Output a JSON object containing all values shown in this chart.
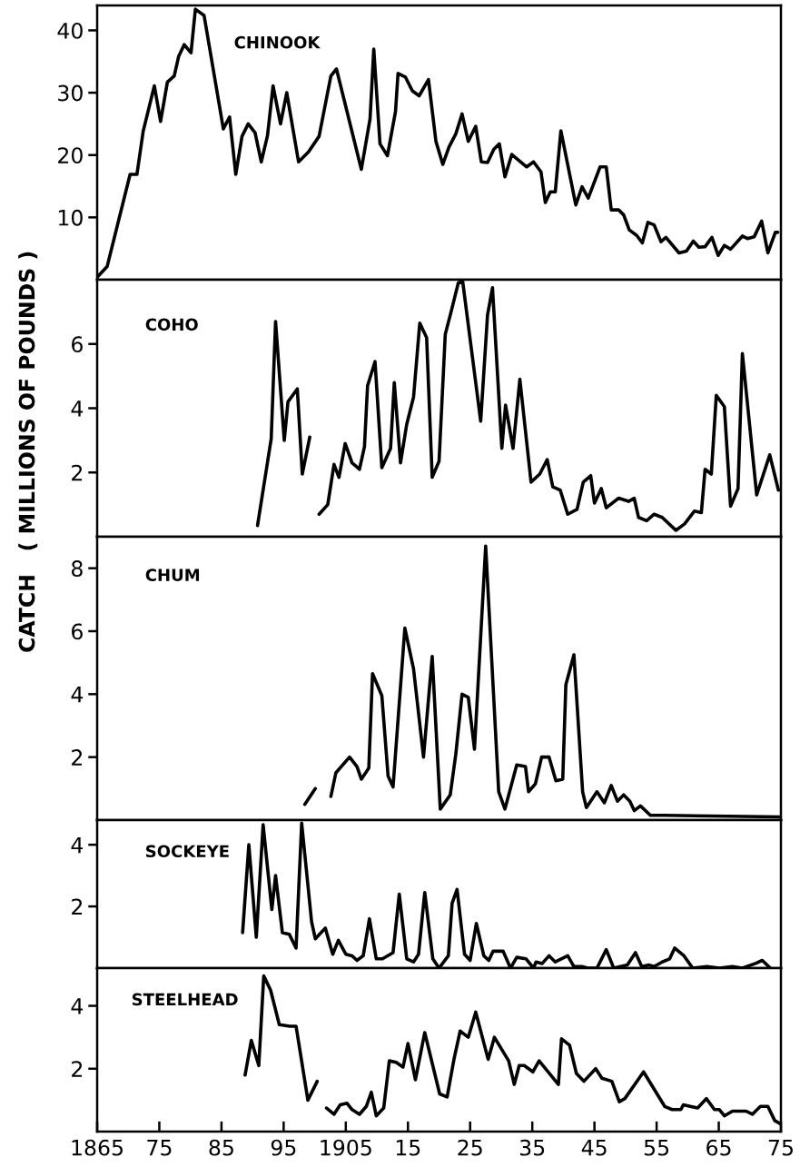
{
  "chart_data": [
    {
      "type": "line",
      "title": "CHINOOK",
      "xlim": [
        1865,
        1975
      ],
      "ylim": [
        0,
        44
      ],
      "yticks": [
        10,
        20,
        30,
        40
      ],
      "tick_labels": "y",
      "line_style": "solid",
      "series": [
        {
          "color": "#000000",
          "x": [
            1865,
            1866.6,
            1870.3,
            1871.4,
            1872.4,
            1874.2,
            1875.2,
            1876.3,
            1877.4,
            1878.1,
            1879.0,
            1880.1,
            1880.8,
            1882.2,
            1885.3,
            1886.3,
            1887.3,
            1888.3,
            1889.3,
            1890.4,
            1891.4,
            1892.4,
            1893.3,
            1894.5,
            1895.5,
            1897.4,
            1899.0,
            1900.7,
            1902.6,
            1903.5,
            1907.5,
            1908.9,
            1909.5,
            1910.5,
            1911.7,
            1913.0,
            1913.4,
            1914.6,
            1915.7,
            1916.8,
            1918.3,
            1919.5,
            1920.6,
            1921.6,
            1922.7,
            1923.7,
            1924.7,
            1925.9,
            1926.8,
            1927.8,
            1928.8,
            1929.7,
            1930.6,
            1931.7,
            1934.1,
            1935.2,
            1936.4,
            1937.1,
            1937.9,
            1938.7,
            1939.6,
            1942.0,
            1943.0,
            1944.0,
            1945.9,
            1946.9,
            1947.7,
            1948.9,
            1949.7,
            1950.6,
            1951.8,
            1952.7,
            1953.6,
            1954.6,
            1955.7,
            1956.5,
            1958.6,
            1959.8,
            1960.9,
            1961.8,
            1962.8,
            1963.9,
            1964.9,
            1965.9,
            1966.9,
            1968.8,
            1969.6,
            1970.7,
            1971.9,
            1972.9,
            1974.1,
            1974.5
          ],
          "values": [
            0.4,
            2.1,
            16.9,
            16.9,
            23.8,
            31.1,
            25.4,
            31.7,
            32.7,
            35.8,
            37.7,
            36.4,
            43.4,
            42.4,
            24.2,
            26.1,
            16.9,
            23,
            25,
            23.6,
            18.9,
            23.1,
            31.1,
            25,
            30,
            18.9,
            20.5,
            23,
            32.7,
            33.8,
            17.7,
            25.8,
            37,
            21.8,
            19.9,
            27,
            33.1,
            32.5,
            30.3,
            29.5,
            32.1,
            22.2,
            18.5,
            21.3,
            23.4,
            26.6,
            22.2,
            24.6,
            18.9,
            18.8,
            20.9,
            21.8,
            16.5,
            20.1,
            18.1,
            18.9,
            17.3,
            12.4,
            14.1,
            14.1,
            23.9,
            12.0,
            14.9,
            13.1,
            18.1,
            18.1,
            11.2,
            11.2,
            10.4,
            8,
            7.1,
            5.9,
            9.2,
            8.8,
            6.1,
            6.8,
            4.3,
            4.6,
            6.2,
            5.2,
            5.3,
            6.8,
            3.9,
            5.5,
            4.9,
            7,
            6.6,
            6.9,
            9.4,
            4.3,
            7.6,
            7.6
          ]
        }
      ]
    },
    {
      "type": "line",
      "title": "COHO",
      "xlim": [
        1865,
        1975
      ],
      "ylim": [
        0,
        8
      ],
      "yticks": [
        2,
        4,
        6
      ],
      "tick_labels": "y",
      "line_style": "solid",
      "series": [
        {
          "color": "#000000",
          "x": [
            1890.8,
            1893.0,
            1893.7,
            1895.1,
            1895.7,
            1897.2,
            1898.0,
            1899.2,
            1900.0,
            1900.7,
            1902.1,
            1903.1,
            1903.9,
            1904.9,
            1906.0,
            1907.2,
            1908.0,
            1908.5,
            1909.7,
            1910.8,
            1912.2,
            1912.8,
            1913.8,
            1914.8,
            1915.9,
            1916.9,
            1918.0,
            1918.9,
            1920.0,
            1921.0,
            1922.0,
            1923.1,
            1923.8,
            1926.7,
            1927.8,
            1928.6,
            1930.1,
            1930.7,
            1931.9,
            1933.0,
            1934.8,
            1936.2,
            1937.4,
            1938.3,
            1939.5,
            1940.7,
            1942.2,
            1943.2,
            1944.4,
            1945.0,
            1946.1,
            1946.9,
            1948.9,
            1950.5,
            1951.4,
            1952.1,
            1953.4,
            1954.6,
            1955.9,
            1958.1,
            1959.5,
            1961.1,
            1962.2,
            1962.8,
            1963.8,
            1964.6,
            1965.9,
            1966.9,
            1968.1,
            1968.8,
            1971.1,
            1973.2,
            1974.6
          ],
          "values": [
            0.35,
            3.05,
            6.7,
            3.0,
            4.2,
            4.6,
            1.95,
            3.1,
            null,
            0.7,
            1.0,
            2.25,
            1.85,
            2.9,
            2.3,
            2.1,
            2.8,
            4.7,
            5.45,
            2.15,
            2.75,
            4.8,
            2.3,
            3.5,
            4.35,
            6.65,
            6.2,
            1.85,
            2.35,
            6.3,
            7.05,
            7.9,
            7.95,
            3.6,
            6.9,
            7.75,
            2.75,
            4.1,
            2.75,
            4.9,
            1.7,
            1.95,
            2.4,
            1.55,
            1.45,
            0.7,
            0.85,
            1.7,
            1.9,
            1.05,
            1.5,
            0.9,
            1.2,
            1.1,
            1.2,
            0.6,
            0.5,
            0.7,
            0.6,
            0.2,
            0.4,
            0.8,
            0.75,
            2.1,
            1.95,
            4.4,
            4.05,
            0.95,
            1.5,
            5.7,
            1.3,
            2.55,
            1.45
          ]
        }
      ]
    },
    {
      "type": "line",
      "title": "CHUM",
      "ylabel": "CATCH   ( MILLIONS OF POUNDS )",
      "xlim": [
        1865,
        1975
      ],
      "ylim": [
        0,
        9
      ],
      "yticks": [
        2,
        4,
        6,
        8
      ],
      "tick_labels": "y",
      "line_style": "solid",
      "series": [
        {
          "color": "#000000",
          "x": [
            1898.4,
            1900.1,
            1901.0,
            1902.6,
            1903.4,
            1905.6,
            1906.8,
            1907.5,
            1908.7,
            1909.3,
            1910.8,
            1911.8,
            1912.6,
            1914.5,
            1915.9,
            1917.5,
            1918.9,
            1920.2,
            1921.8,
            1922.7,
            1923.7,
            1924.7,
            1925.7,
            1927.5,
            1929.6,
            1930.6,
            1932.5,
            1933.9,
            1934.4,
            1935.5,
            1936.5,
            1937.7,
            1938.8,
            1939.9,
            1940.4,
            1941.7,
            1943.1,
            1943.7,
            1945.4,
            1946.6,
            1947.7,
            1948.7,
            1949.7,
            1950.7,
            1951.4,
            1952.4,
            1954.0,
            1956.1,
            1974.8
          ],
          "values": [
            0.5,
            1.0,
            null,
            0.75,
            1.5,
            2.0,
            1.7,
            1.3,
            1.65,
            4.65,
            3.95,
            1.4,
            1.05,
            6.1,
            4.8,
            2.0,
            5.2,
            0.35,
            0.8,
            2.1,
            4.0,
            3.9,
            2.25,
            8.7,
            0.9,
            0.35,
            1.75,
            1.7,
            0.9,
            1.15,
            2.0,
            2.0,
            1.25,
            1.3,
            4.3,
            5.25,
            0.9,
            0.4,
            0.9,
            0.55,
            1.1,
            0.6,
            0.8,
            0.6,
            0.3,
            0.45,
            0.15,
            0.15,
            0.1
          ]
        }
      ]
    },
    {
      "type": "line",
      "title": "SOCKEYE",
      "xlim": [
        1865,
        1975
      ],
      "ylim": [
        0,
        4.8
      ],
      "yticks": [
        2,
        4
      ],
      "tick_labels": "y",
      "line_style": "solid",
      "series": [
        {
          "color": "#000000",
          "x": [
            1888.4,
            1889.4,
            1890.6,
            1891.7,
            1893.1,
            1893.7,
            1894.8,
            1895.9,
            1897.0,
            1897.9,
            1899.5,
            1900.1,
            1901.7,
            1902.9,
            1903.8,
            1905.0,
            1906.0,
            1906.8,
            1907.8,
            1908.8,
            1909.9,
            1910.9,
            1912.6,
            1913.6,
            1914.8,
            1915.9,
            1916.7,
            1917.7,
            1919.0,
            1920.0,
            1921.5,
            1922.1,
            1922.9,
            1924.1,
            1925.0,
            1926.0,
            1927.2,
            1928.0,
            1928.7,
            1930.3,
            1931.5,
            1932.5,
            1934.0,
            1935.2,
            1935.6,
            1936.6,
            1937.7,
            1938.7,
            1940.7,
            1941.7,
            1943.0,
            1943.9,
            1945.4,
            1946.9,
            1948.1,
            1950.3,
            1951.6,
            1952.6,
            1953.8,
            1954.6,
            1955.9,
            1957.1,
            1957.9,
            1959.4,
            1960.8,
            1963.1,
            1965.1,
            1967.2,
            1968.8,
            1970.9,
            1972.0,
            1973.3
          ],
          "values": [
            1.15,
            4.0,
            1.0,
            4.65,
            1.9,
            3.0,
            1.15,
            1.1,
            0.65,
            4.7,
            1.5,
            0.95,
            1.3,
            0.45,
            0.9,
            0.45,
            0.4,
            0.25,
            0.4,
            1.6,
            0.3,
            0.3,
            0.5,
            2.4,
            0.3,
            0.2,
            0.45,
            2.45,
            0.3,
            0,
            0.4,
            2.1,
            2.55,
            0.45,
            0.25,
            1.45,
            0.4,
            0.25,
            0.55,
            0.55,
            0,
            0.35,
            0.3,
            0,
            0.2,
            0.15,
            0.4,
            0.2,
            0.4,
            0.05,
            0.05,
            0,
            0,
            0.6,
            0,
            0.1,
            0.5,
            0.05,
            0.1,
            0.05,
            0.2,
            0.3,
            0.65,
            0.4,
            0,
            0.05,
            0,
            0.05,
            0,
            0.15,
            0.25,
            0
          ]
        }
      ]
    },
    {
      "type": "line",
      "title": "STEELHEAD",
      "xlim": [
        1865,
        1975
      ],
      "ylim": [
        0,
        5.2
      ],
      "yticks": [
        2,
        4
      ],
      "line_style": "solid",
      "xticks": [
        {
          "value": 1865,
          "label": "1865"
        },
        {
          "value": 1875,
          "label": "75"
        },
        {
          "value": 1885,
          "label": "85"
        },
        {
          "value": 1895,
          "label": "95"
        },
        {
          "value": 1905,
          "label": "1905"
        },
        {
          "value": 1915,
          "label": "15"
        },
        {
          "value": 1925,
          "label": "25"
        },
        {
          "value": 1935,
          "label": "35"
        },
        {
          "value": 1945,
          "label": "45"
        },
        {
          "value": 1955,
          "label": "55"
        },
        {
          "value": 1965,
          "label": "65"
        },
        {
          "value": 1975,
          "label": "75"
        }
      ],
      "series": [
        {
          "color": "#000000",
          "x": [
            1888.8,
            1889.8,
            1891.0,
            1891.8,
            1892.9,
            1894.3,
            1896.0,
            1897.0,
            1898.9,
            1900.4,
            1901.2,
            1901.9,
            1903.1,
            1904.1,
            1905.2,
            1906.0,
            1907.2,
            1908.3,
            1909.1,
            1909.9,
            1911.1,
            1912.0,
            1913.1,
            1914.2,
            1915.0,
            1916.2,
            1917.7,
            1920.1,
            1921.3,
            1922.4,
            1923.4,
            1924.7,
            1925.9,
            1927.9,
            1928.9,
            1931.2,
            1932.1,
            1932.9,
            1933.7,
            1935.1,
            1936.1,
            1939.2,
            1939.7,
            1941.0,
            1942.1,
            1943.3,
            1945.2,
            1946.2,
            1947.8,
            1949.0,
            1949.9,
            1952.9,
            1954.6,
            1956.3,
            1957.5,
            1958.9,
            1959.3,
            1961.6,
            1963.0,
            1964.3,
            1965.1,
            1965.9,
            1967.2,
            1969.4,
            1970.4,
            1971.7,
            1972.9,
            1974.0,
            1974.9
          ],
          "values": [
            1.8,
            2.9,
            2.1,
            4.95,
            4.5,
            3.4,
            3.35,
            3.35,
            1.0,
            1.6,
            null,
            0.75,
            0.55,
            0.85,
            0.9,
            0.7,
            0.55,
            0.8,
            1.25,
            0.5,
            0.75,
            2.25,
            2.2,
            2.05,
            2.8,
            1.65,
            3.15,
            1.2,
            1.1,
            2.3,
            3.2,
            3.0,
            3.8,
            2.3,
            3.0,
            2.25,
            1.5,
            2.1,
            2.1,
            1.9,
            2.25,
            1.5,
            2.95,
            2.75,
            1.85,
            1.6,
            2.0,
            1.7,
            1.6,
            0.95,
            1.05,
            1.9,
            1.35,
            0.8,
            0.7,
            0.7,
            0.85,
            0.75,
            1.05,
            0.7,
            0.7,
            0.5,
            0.65,
            0.65,
            0.55,
            0.8,
            0.8,
            0.35,
            0.25
          ]
        }
      ]
    }
  ]
}
